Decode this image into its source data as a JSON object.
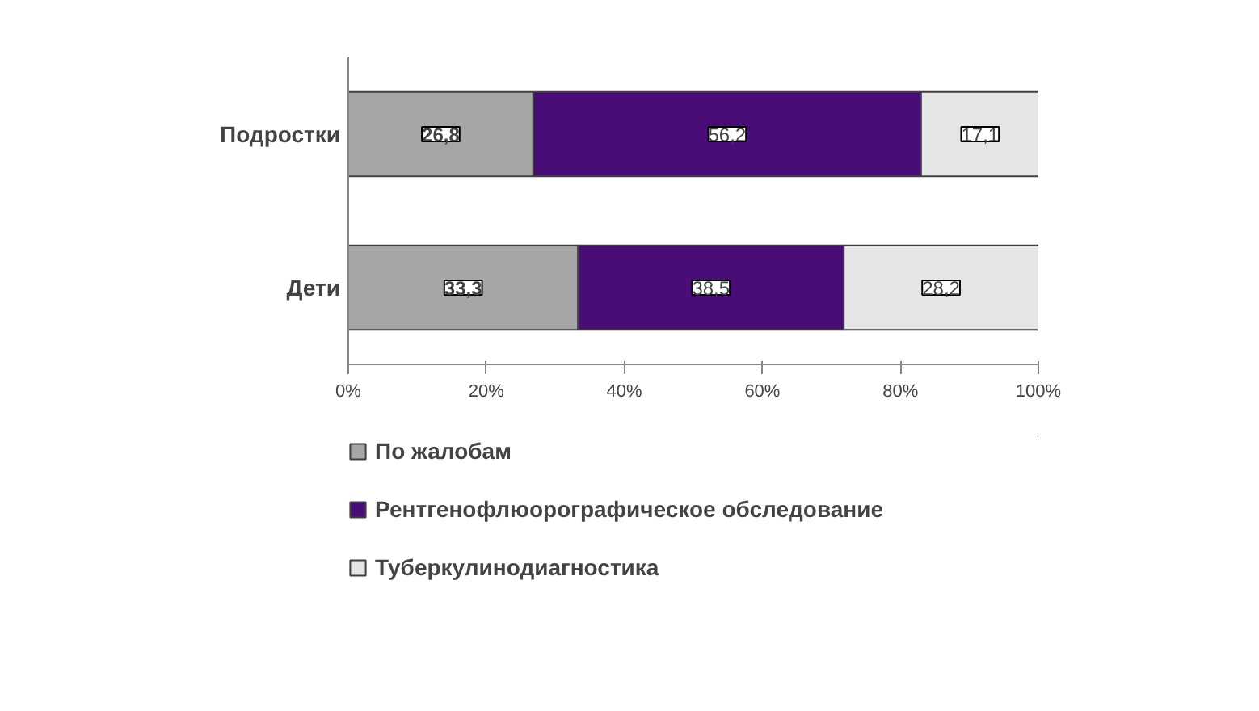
{
  "chart_data": {
    "type": "bar",
    "orientation": "horizontal",
    "stacked": true,
    "categories": [
      "Подростки",
      "Дети"
    ],
    "series": [
      {
        "name": "По жалобам",
        "color": "#a6a6a6",
        "values": [
          26.8,
          33.3
        ],
        "value_labels": [
          "26,8",
          "33,3"
        ]
      },
      {
        "name": "Рентгенофлюорографическое обследование",
        "color": "#4a0d78",
        "values": [
          56.2,
          38.5
        ],
        "value_labels": [
          "56,2",
          "38,5"
        ]
      },
      {
        "name": "Туберкулинодиагностика",
        "color": "#e6e6e6",
        "values": [
          17.1,
          28.2
        ],
        "value_labels": [
          "17,1",
          "28,2"
        ]
      }
    ],
    "xlim": [
      0,
      100
    ],
    "xticks": [
      {
        "value": 0,
        "label": "0%"
      },
      {
        "value": 20,
        "label": "20%"
      },
      {
        "value": 40,
        "label": "40%"
      },
      {
        "value": 60,
        "label": "60%"
      },
      {
        "value": 80,
        "label": "80%"
      },
      {
        "value": 100,
        "label": "100%"
      }
    ],
    "grid": false,
    "legend": "bottom"
  }
}
